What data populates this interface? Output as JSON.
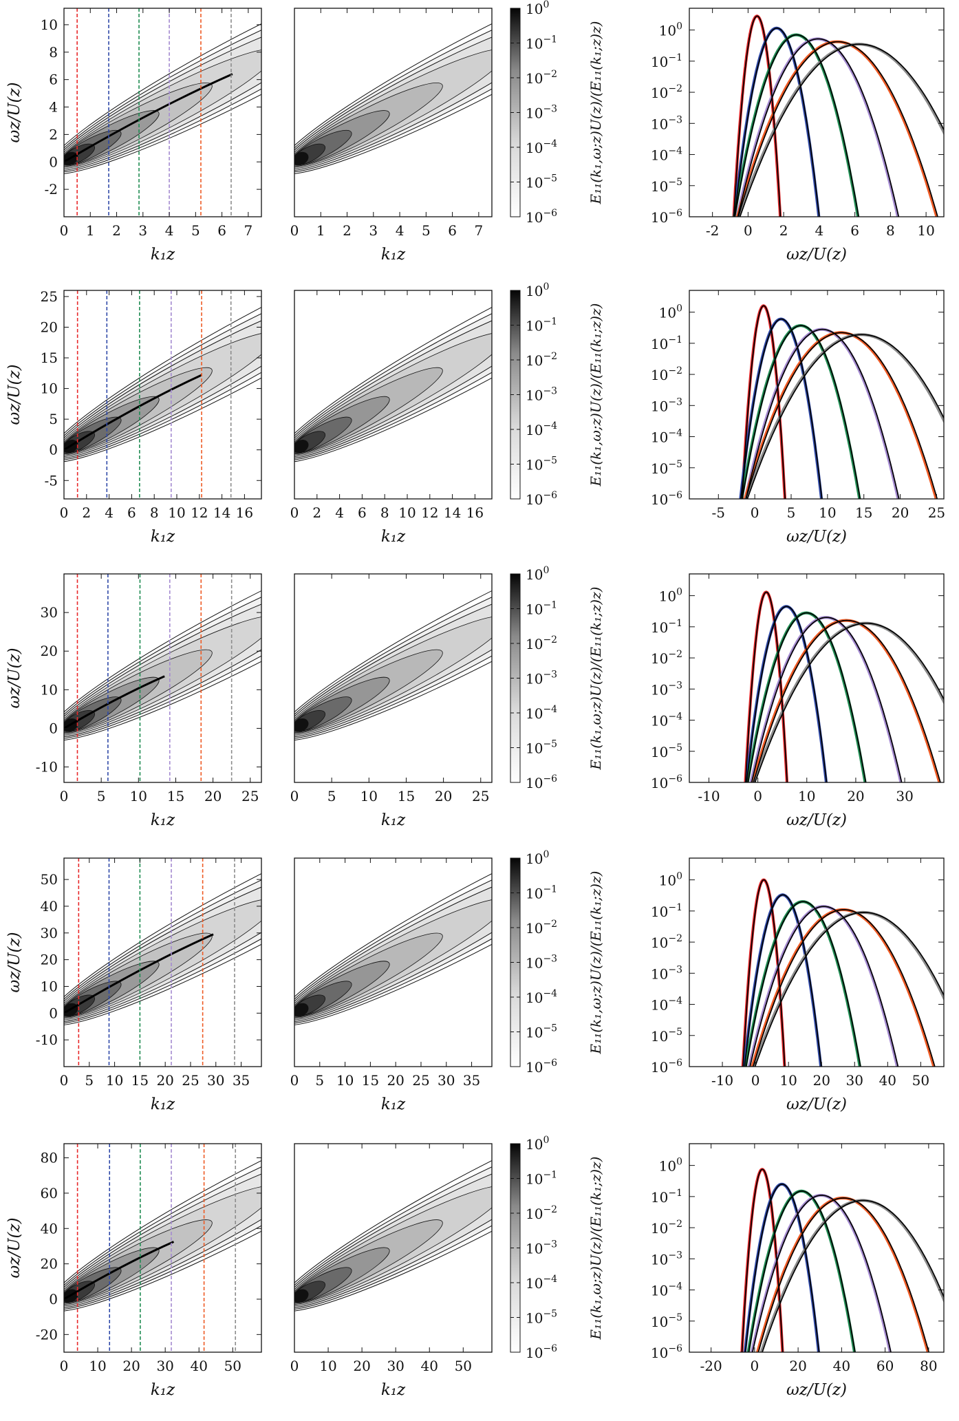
{
  "figure": {
    "labels": {
      "kz": "k₁z",
      "omega_ratio": "ωz/U(z)",
      "spectrum": "E₁₁(k₁,ω;z)U(z)/(E₁₁(k₁;z)z)"
    },
    "colorbar_ticks": [
      "10^0",
      "10^-1",
      "10^-2",
      "10^-3",
      "10^-4",
      "10^-5",
      "10^-6"
    ],
    "colors": {
      "series": [
        "#e8282a",
        "#2f49a8",
        "#1f8c52",
        "#a48ad0",
        "#ee5a24",
        "#8c8c8c"
      ],
      "model": "#000000"
    }
  },
  "chart_data": [
    {
      "row": 1,
      "panels": [
        {
          "panel": "measured",
          "type": "heatmap",
          "xlabel": "k₁z",
          "ylabel": "ωz/U(z)",
          "xlim": [
            0,
            7.5
          ],
          "ylim": [
            -4,
            11.2
          ],
          "xticks": [
            "0",
            "1",
            "2",
            "3",
            "4",
            "5",
            "6",
            "7"
          ],
          "yticks": [
            "-2",
            "0",
            "2",
            "4",
            "6",
            "8",
            "10"
          ],
          "contour_slope": 1.0,
          "ridge_end": [
            6.4,
            6.4
          ],
          "colorbar": {
            "scale": "log",
            "range": [
              1e-06,
              1
            ]
          },
          "reference_lines_k1z": [
            0.5,
            1.7,
            2.85,
            4.0,
            5.2,
            6.35
          ]
        },
        {
          "panel": "model",
          "type": "heatmap",
          "xlabel": "k₁z",
          "xlim": [
            0,
            7.5
          ],
          "ylim": [
            -4,
            11.2
          ],
          "xticks": [
            "0",
            "1",
            "2",
            "3",
            "4",
            "5",
            "6",
            "7"
          ],
          "contour_slope": 1.0,
          "colorbar": {
            "scale": "log",
            "range": [
              1e-06,
              1
            ]
          }
        },
        {
          "panel": "profiles",
          "type": "line",
          "xlabel": "ωz/U(z)",
          "ylabel": "E₁₁(k₁,ω;z)U(z)/(E₁₁(k₁;z)z)",
          "xlim": [
            -3.3,
            11
          ],
          "ylog": true,
          "ylim": [
            1e-06,
            5
          ],
          "xticks": [
            "-2",
            "0",
            "2",
            "4",
            "6",
            "8",
            "10"
          ],
          "yticks": [
            "10^0",
            "10^-1",
            "10^-2",
            "10^-3",
            "10^-4",
            "10^-5",
            "10^-6"
          ],
          "series": [
            {
              "center": 0.5,
              "peak": 2.8,
              "sigma": 0.24
            },
            {
              "center": 1.6,
              "peak": 1.15,
              "sigma": 0.45
            },
            {
              "center": 2.7,
              "peak": 0.7,
              "sigma": 0.67
            },
            {
              "center": 3.9,
              "peak": 0.52,
              "sigma": 0.88
            },
            {
              "center": 5.0,
              "peak": 0.42,
              "sigma": 1.1
            },
            {
              "center": 6.2,
              "peak": 0.35,
              "sigma": 1.33
            }
          ]
        }
      ]
    },
    {
      "row": 2,
      "panels": [
        {
          "panel": "measured",
          "type": "heatmap",
          "xlabel": "k₁z",
          "ylabel": "ωz/U(z)",
          "xlim": [
            0,
            17.5
          ],
          "ylim": [
            -8,
            26
          ],
          "xticks": [
            "0",
            "2",
            "4",
            "6",
            "8",
            "10",
            "12",
            "14",
            "16"
          ],
          "yticks": [
            "-5",
            "0",
            "5",
            "10",
            "15",
            "20",
            "25"
          ],
          "contour_slope": 1.0,
          "ridge_end": [
            12.2,
            12.2
          ],
          "colorbar": {
            "scale": "log",
            "range": [
              1e-06,
              1
            ]
          },
          "reference_lines_k1z": [
            1.2,
            3.8,
            6.7,
            9.5,
            12.2,
            14.8
          ]
        },
        {
          "panel": "model",
          "type": "heatmap",
          "xlabel": "k₁z",
          "xlim": [
            0,
            17.5
          ],
          "ylim": [
            -8,
            26
          ],
          "xticks": [
            "0",
            "2",
            "4",
            "6",
            "8",
            "10",
            "12",
            "14",
            "16"
          ],
          "contour_slope": 1.0,
          "colorbar": {
            "scale": "log",
            "range": [
              1e-06,
              1
            ]
          }
        },
        {
          "panel": "profiles",
          "type": "line",
          "xlabel": "ωz/U(z)",
          "ylabel": "E₁₁(k₁,ω;z)U(z)/(E₁₁(k₁;z)z)",
          "xlim": [
            -9,
            26
          ],
          "ylog": true,
          "ylim": [
            1e-06,
            5
          ],
          "xticks": [
            "-5",
            "0",
            "5",
            "10",
            "15",
            "20",
            "25"
          ],
          "yticks": [
            "10^0",
            "10^-1",
            "10^-2",
            "10^-3",
            "10^-4",
            "10^-5",
            "10^-6"
          ],
          "series": [
            {
              "center": 1.2,
              "peak": 1.6,
              "sigma": 0.55
            },
            {
              "center": 3.6,
              "peak": 0.6,
              "sigma": 1.08
            },
            {
              "center": 6.3,
              "peak": 0.37,
              "sigma": 1.6
            },
            {
              "center": 9.2,
              "peak": 0.28,
              "sigma": 2.1
            },
            {
              "center": 11.8,
              "peak": 0.22,
              "sigma": 2.65
            },
            {
              "center": 14.6,
              "peak": 0.19,
              "sigma": 3.2
            }
          ]
        }
      ]
    },
    {
      "row": 3,
      "panels": [
        {
          "panel": "measured",
          "type": "heatmap",
          "xlabel": "k₁z",
          "ylabel": "ωz/U(z)",
          "xlim": [
            0,
            26.5
          ],
          "ylim": [
            -14,
            40
          ],
          "xticks": [
            "0",
            "5",
            "10",
            "15",
            "20",
            "25"
          ],
          "yticks": [
            "-10",
            "0",
            "10",
            "20",
            "30"
          ],
          "contour_slope": 1.0,
          "ridge_end": [
            13.5,
            13.5
          ],
          "colorbar": {
            "scale": "log",
            "range": [
              1e-06,
              1
            ]
          },
          "reference_lines_k1z": [
            1.8,
            5.9,
            10.2,
            14.2,
            18.4,
            22.5
          ]
        },
        {
          "panel": "model",
          "type": "heatmap",
          "xlabel": "k₁z",
          "xlim": [
            0,
            26.5
          ],
          "ylim": [
            -14,
            40
          ],
          "xticks": [
            "0",
            "5",
            "10",
            "15",
            "20",
            "25"
          ],
          "contour_slope": 1.0,
          "colorbar": {
            "scale": "log",
            "range": [
              1e-06,
              1
            ]
          }
        },
        {
          "panel": "profiles",
          "type": "line",
          "xlabel": "ωz/U(z)",
          "ylabel": "E₁₁(k₁,ω;z)U(z)/(E₁₁(k₁;z)z)",
          "xlim": [
            -14,
            38
          ],
          "ylog": true,
          "ylim": [
            1e-06,
            5
          ],
          "xticks": [
            "-10",
            "0",
            "10",
            "20",
            "30"
          ],
          "yticks": [
            "10^0",
            "10^-1",
            "10^-2",
            "10^-3",
            "10^-4",
            "10^-5",
            "10^-6"
          ],
          "series": [
            {
              "center": 1.7,
              "peak": 1.3,
              "sigma": 0.8
            },
            {
              "center": 5.8,
              "peak": 0.45,
              "sigma": 1.6
            },
            {
              "center": 9.9,
              "peak": 0.28,
              "sigma": 2.4
            },
            {
              "center": 13.9,
              "peak": 0.2,
              "sigma": 3.1
            },
            {
              "center": 18.0,
              "peak": 0.16,
              "sigma": 3.9
            },
            {
              "center": 22.0,
              "peak": 0.13,
              "sigma": 4.7
            }
          ]
        }
      ]
    },
    {
      "row": 4,
      "panels": [
        {
          "panel": "measured",
          "type": "heatmap",
          "xlabel": "k₁z",
          "ylabel": "ωz/U(z)",
          "xlim": [
            0,
            39
          ],
          "ylim": [
            -20,
            58
          ],
          "xticks": [
            "0",
            "5",
            "10",
            "15",
            "20",
            "25",
            "30",
            "35"
          ],
          "yticks": [
            "-10",
            "0",
            "10",
            "20",
            "30",
            "40",
            "50"
          ],
          "contour_slope": 1.0,
          "ridge_end": [
            29.5,
            29.5
          ],
          "colorbar": {
            "scale": "log",
            "range": [
              1e-06,
              1
            ]
          },
          "reference_lines_k1z": [
            2.9,
            8.9,
            15.0,
            21.2,
            27.4,
            33.7
          ]
        },
        {
          "panel": "model",
          "type": "heatmap",
          "xlabel": "k₁z",
          "xlim": [
            0,
            39
          ],
          "ylim": [
            -20,
            58
          ],
          "xticks": [
            "0",
            "5",
            "10",
            "15",
            "20",
            "25",
            "30",
            "35"
          ],
          "contour_slope": 1.0,
          "colorbar": {
            "scale": "log",
            "range": [
              1e-06,
              1
            ]
          }
        },
        {
          "panel": "profiles",
          "type": "line",
          "xlabel": "ωz/U(z)",
          "ylabel": "E₁₁(k₁,ω;z)U(z)/(E₁₁(k₁;z)z)",
          "xlim": [
            -20,
            57
          ],
          "ylog": true,
          "ylim": [
            1e-06,
            5
          ],
          "xticks": [
            "-10",
            "0",
            "10",
            "20",
            "30",
            "40",
            "50"
          ],
          "yticks": [
            "10^0",
            "10^-1",
            "10^-2",
            "10^-3",
            "10^-4",
            "10^-5",
            "10^-6"
          ],
          "series": [
            {
              "center": 2.5,
              "peak": 1.0,
              "sigma": 1.2
            },
            {
              "center": 8.2,
              "peak": 0.33,
              "sigma": 2.3
            },
            {
              "center": 14.3,
              "peak": 0.2,
              "sigma": 3.5
            },
            {
              "center": 20.5,
              "peak": 0.14,
              "sigma": 4.6
            },
            {
              "center": 26.5,
              "peak": 0.11,
              "sigma": 5.7
            },
            {
              "center": 32.5,
              "peak": 0.09,
              "sigma": 6.9
            }
          ]
        }
      ]
    },
    {
      "row": 5,
      "panels": [
        {
          "panel": "measured",
          "type": "heatmap",
          "xlabel": "k₁z",
          "ylabel": "ωz/U(z)",
          "xlim": [
            0,
            58.5
          ],
          "ylim": [
            -30,
            88
          ],
          "xticks": [
            "0",
            "10",
            "20",
            "30",
            "40",
            "50"
          ],
          "yticks": [
            "-20",
            "0",
            "20",
            "40",
            "60",
            "80"
          ],
          "contour_slope": 1.0,
          "ridge_end": [
            32.5,
            32.5
          ],
          "colorbar": {
            "scale": "log",
            "range": [
              1e-06,
              1
            ]
          },
          "reference_lines_k1z": [
            4.0,
            13.5,
            22.6,
            31.8,
            41.5,
            50.8
          ]
        },
        {
          "panel": "model",
          "type": "heatmap",
          "xlabel": "k₁z",
          "xlim": [
            0,
            58.5
          ],
          "ylim": [
            -30,
            88
          ],
          "xticks": [
            "0",
            "10",
            "20",
            "30",
            "40",
            "50"
          ],
          "contour_slope": 1.0,
          "colorbar": {
            "scale": "log",
            "range": [
              1e-06,
              1
            ]
          }
        },
        {
          "panel": "profiles",
          "type": "line",
          "xlabel": "ωz/U(z)",
          "ylabel": "E₁₁(k₁,ω;z)U(z)/(E₁₁(k₁;z)z)",
          "xlim": [
            -30,
            87
          ],
          "ylog": true,
          "ylim": [
            1e-06,
            5
          ],
          "xticks": [
            "-20",
            "0",
            "20",
            "40",
            "60",
            "80"
          ],
          "yticks": [
            "10^0",
            "10^-1",
            "10^-2",
            "10^-3",
            "10^-4",
            "10^-5",
            "10^-6"
          ],
          "series": [
            {
              "center": 3.5,
              "peak": 0.75,
              "sigma": 1.8
            },
            {
              "center": 12.5,
              "peak": 0.25,
              "sigma": 3.4
            },
            {
              "center": 21.5,
              "peak": 0.15,
              "sigma": 5.0
            },
            {
              "center": 30.5,
              "peak": 0.11,
              "sigma": 6.6
            },
            {
              "center": 40.5,
              "peak": 0.09,
              "sigma": 8.2
            },
            {
              "center": 49.5,
              "peak": 0.075,
              "sigma": 9.8
            }
          ]
        }
      ]
    }
  ]
}
